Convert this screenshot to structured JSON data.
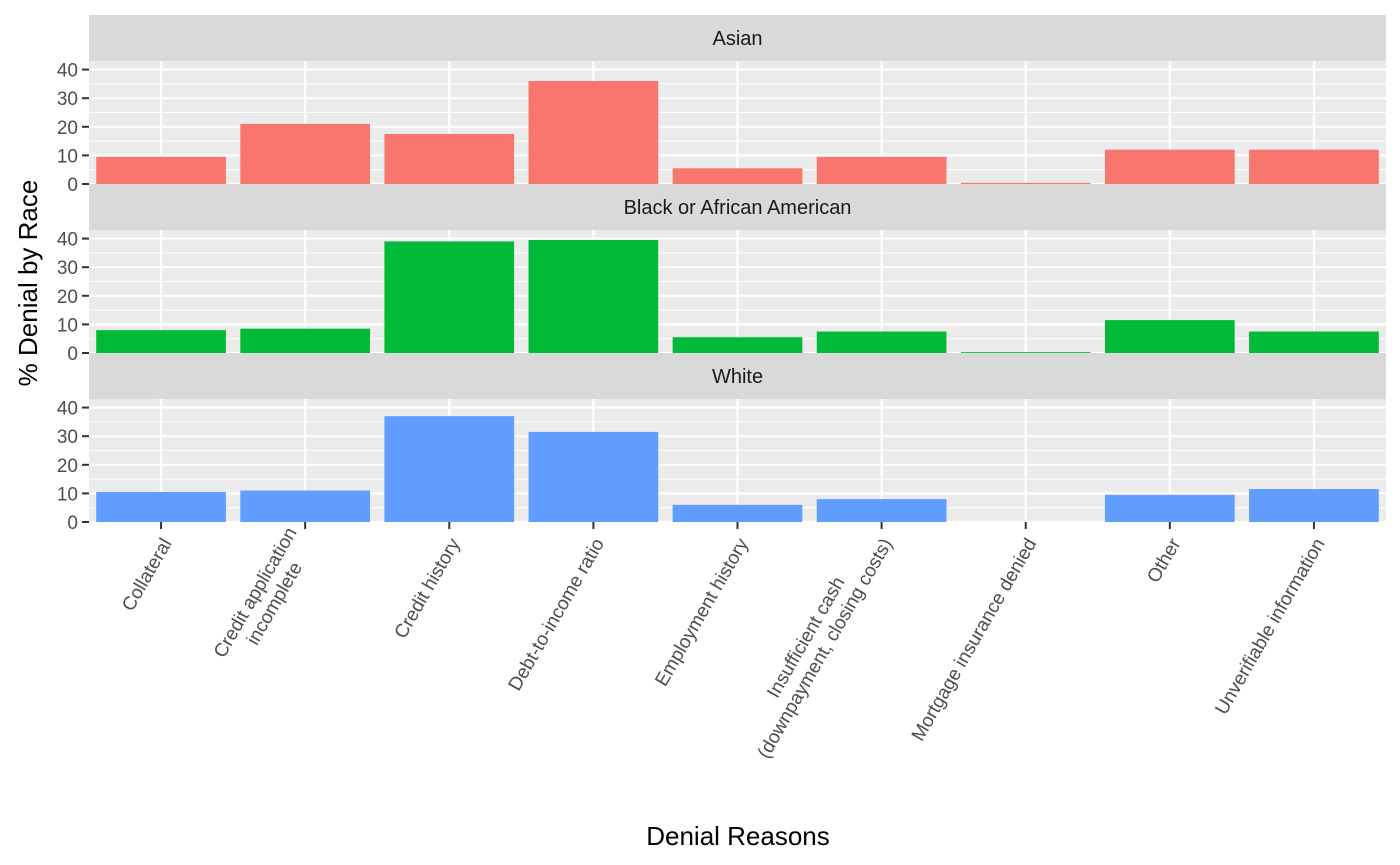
{
  "chart_data": {
    "type": "bar",
    "layout": "facet-rows",
    "xlabel": "Denial Reasons",
    "ylabel": "% Denial by Race",
    "ylim": [
      0,
      43
    ],
    "yticks": [
      0,
      10,
      20,
      30,
      40
    ],
    "grid": true,
    "categories": [
      [
        "Collateral"
      ],
      [
        "Credit application",
        "incomplete"
      ],
      [
        "Credit history"
      ],
      [
        "Debt-to-income ratio"
      ],
      [
        "Employment history"
      ],
      [
        "Insufficient cash",
        "(downpayment, closing costs)"
      ],
      [
        "Mortgage insurance denied"
      ],
      [
        "Other"
      ],
      [
        "Unverifiable information"
      ]
    ],
    "series": [
      {
        "name": "Asian",
        "color": "#F8766D",
        "values": [
          9.5,
          21,
          17.5,
          36,
          5.5,
          9.5,
          0.4,
          12,
          12
        ]
      },
      {
        "name": "Black or African American",
        "color": "#00BA38",
        "values": [
          8,
          8.5,
          39,
          39.5,
          5.5,
          7.5,
          0.3,
          11.5,
          7.5
        ]
      },
      {
        "name": "White",
        "color": "#619CFF",
        "values": [
          10.5,
          11,
          37,
          31.5,
          6,
          8,
          0,
          9.5,
          11.5
        ]
      }
    ]
  }
}
